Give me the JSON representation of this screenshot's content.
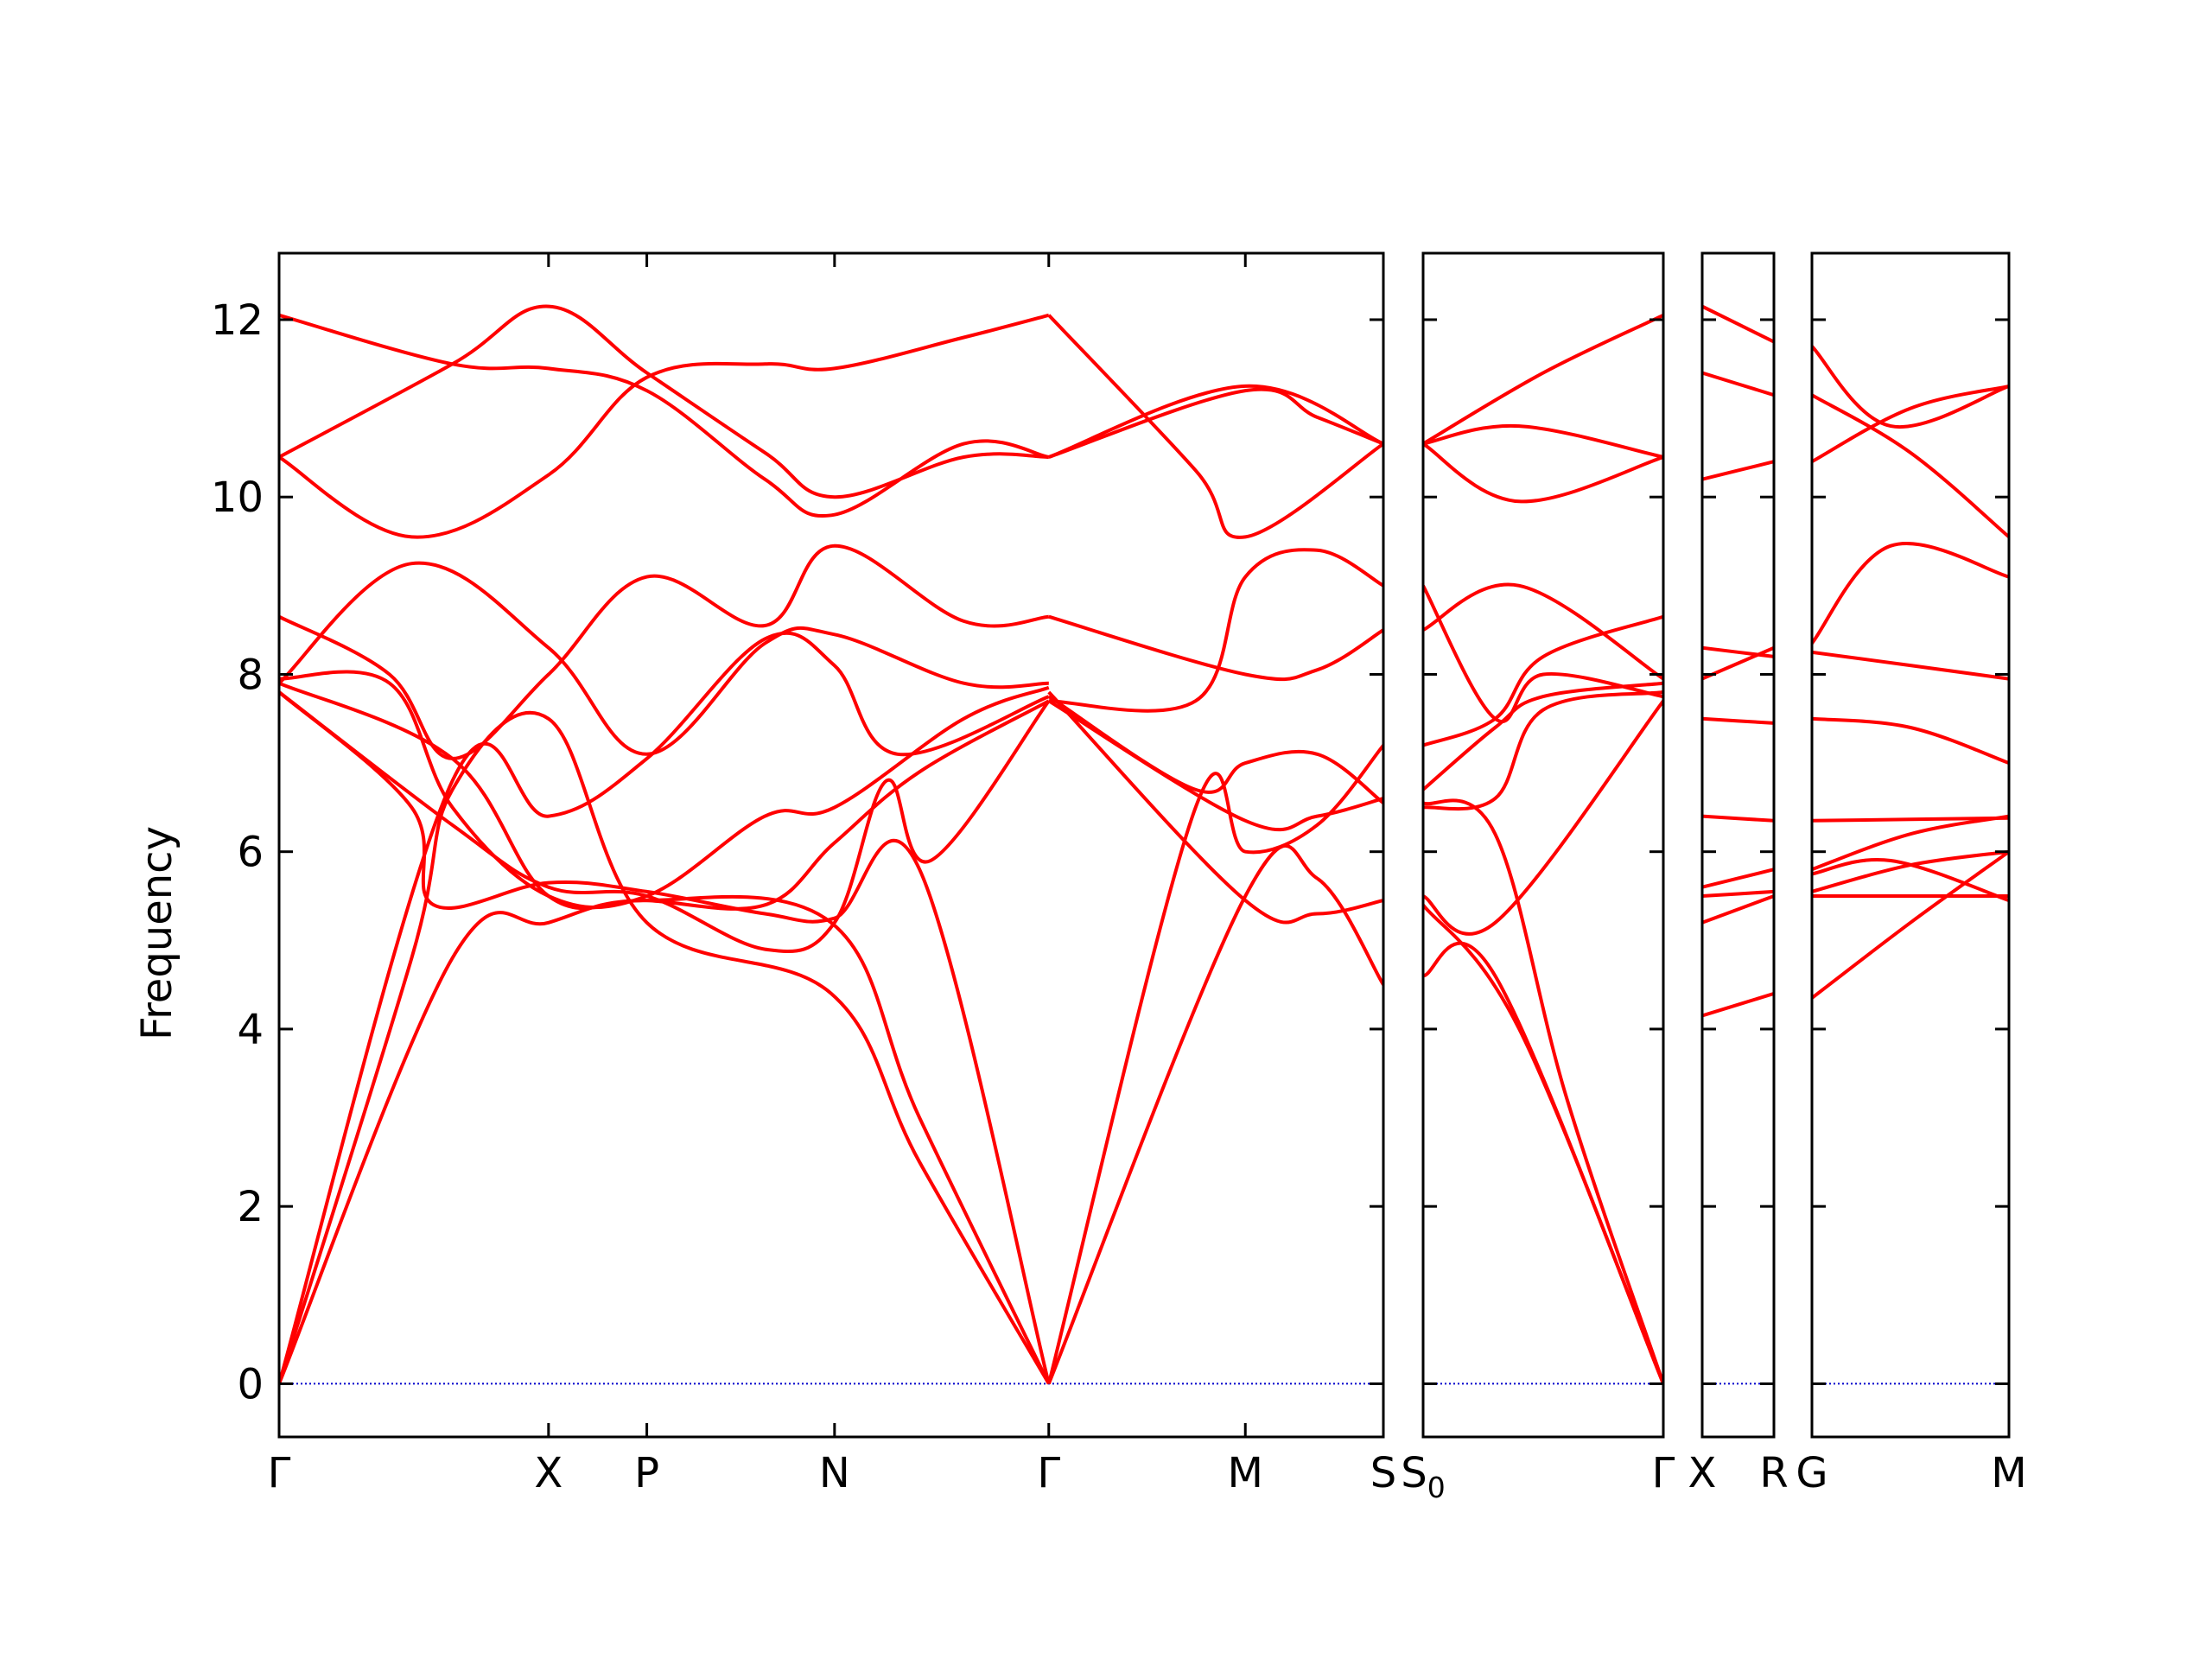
{
  "chart_data": {
    "type": "line",
    "title": "",
    "xlabel": "",
    "ylabel": "Frequency",
    "ylim": [
      -0.6,
      12.75
    ],
    "yticks": [
      0,
      2,
      4,
      6,
      8,
      10,
      12
    ],
    "grid": false,
    "line_color": "#ff0000",
    "zero_line_color": "#0000cc",
    "panels": [
      {
        "labels": [
          "Γ",
          "X",
          "P",
          "N",
          "Γ",
          "M",
          "S"
        ],
        "label_subs": [
          "",
          "",
          "",
          "",
          "",
          "",
          ""
        ],
        "label_x": [
          0,
          0.244,
          0.333,
          0.503,
          0.697,
          0.875,
          1.0
        ],
        "bands": [
          [
            [
              0,
              0
            ],
            [
              0.157,
              4.8
            ],
            [
              0.244,
              5.2
            ],
            [
              0.333,
              5.45
            ],
            [
              0.5,
              5.2
            ],
            [
              0.58,
              3.0
            ],
            [
              0.697,
              0
            ]
          ],
          [
            [
              0,
              0
            ],
            [
              0.12,
              4.8
            ],
            [
              0.157,
              6.7
            ],
            [
              0.244,
              7.5
            ],
            [
              0.333,
              5.2
            ],
            [
              0.5,
              4.4
            ],
            [
              0.58,
              2.5
            ],
            [
              0.697,
              0
            ]
          ],
          [
            [
              0,
              0
            ],
            [
              0.157,
              6.8
            ],
            [
              0.244,
              6.4
            ],
            [
              0.333,
              7.05
            ],
            [
              0.44,
              8.4
            ],
            [
              0.503,
              8.1
            ],
            [
              0.56,
              7.1
            ],
            [
              0.697,
              7.75
            ]
          ],
          [
            [
              0,
              7.8
            ],
            [
              0.12,
              6.5
            ],
            [
              0.14,
              5.4
            ],
            [
              0.244,
              5.65
            ],
            [
              0.333,
              5.55
            ],
            [
              0.44,
              5.3
            ],
            [
              0.503,
              5.25
            ],
            [
              0.58,
              5.8
            ],
            [
              0.697,
              0
            ]
          ],
          [
            [
              0,
              7.8
            ],
            [
              0.157,
              6.3
            ],
            [
              0.244,
              5.6
            ],
            [
              0.333,
              5.5
            ],
            [
              0.44,
              4.9
            ],
            [
              0.503,
              5.2
            ],
            [
              0.55,
              6.8
            ],
            [
              0.59,
              5.9
            ],
            [
              0.697,
              7.7
            ]
          ],
          [
            [
              0,
              7.9
            ],
            [
              0.157,
              7.05
            ],
            [
              0.244,
              5.5
            ],
            [
              0.333,
              5.45
            ],
            [
              0.44,
              5.4
            ],
            [
              0.503,
              6.1
            ],
            [
              0.58,
              6.9
            ],
            [
              0.697,
              7.7
            ]
          ],
          [
            [
              0,
              7.95
            ],
            [
              0.1,
              7.9
            ],
            [
              0.157,
              6.5
            ],
            [
              0.244,
              5.5
            ],
            [
              0.333,
              5.5
            ],
            [
              0.44,
              6.4
            ],
            [
              0.503,
              6.5
            ],
            [
              0.62,
              7.5
            ],
            [
              0.697,
              7.85
            ]
          ],
          [
            [
              0,
              8.65
            ],
            [
              0.1,
              8.0
            ],
            [
              0.157,
              7.05
            ],
            [
              0.244,
              8.0
            ],
            [
              0.333,
              9.1
            ],
            [
              0.44,
              8.55
            ],
            [
              0.503,
              9.45
            ],
            [
              0.62,
              8.6
            ],
            [
              0.697,
              8.65
            ]
          ],
          [
            [
              0,
              7.9
            ],
            [
              0.12,
              9.25
            ],
            [
              0.244,
              8.3
            ],
            [
              0.333,
              7.1
            ],
            [
              0.44,
              8.35
            ],
            [
              0.503,
              8.45
            ],
            [
              0.62,
              7.9
            ],
            [
              0.697,
              7.9
            ]
          ],
          [
            [
              0,
              10.45
            ],
            [
              0.157,
              11.5
            ],
            [
              0.244,
              12.15
            ],
            [
              0.333,
              11.4
            ],
            [
              0.44,
              10.5
            ],
            [
              0.503,
              10.0
            ],
            [
              0.62,
              10.45
            ],
            [
              0.697,
              10.45
            ]
          ],
          [
            [
              0,
              10.45
            ],
            [
              0.12,
              9.55
            ],
            [
              0.244,
              10.25
            ],
            [
              0.333,
              11.35
            ],
            [
              0.44,
              11.5
            ],
            [
              0.503,
              11.45
            ],
            [
              0.62,
              11.8
            ],
            [
              0.697,
              12.05
            ]
          ],
          [
            [
              0,
              12.05
            ],
            [
              0.157,
              11.5
            ],
            [
              0.244,
              11.45
            ],
            [
              0.333,
              11.2
            ],
            [
              0.44,
              10.2
            ],
            [
              0.503,
              9.8
            ],
            [
              0.62,
              10.6
            ],
            [
              0.697,
              10.45
            ]
          ],
          [
            [
              0.697,
              0
            ],
            [
              0.875,
              5.5
            ],
            [
              0.94,
              5.7
            ],
            [
              1.0,
              4.5
            ]
          ],
          [
            [
              0.697,
              0
            ],
            [
              0.83,
              6.5
            ],
            [
              0.875,
              6.0
            ],
            [
              0.94,
              6.3
            ],
            [
              1.0,
              7.2
            ]
          ],
          [
            [
              0.697,
              7.7
            ],
            [
              0.875,
              6.35
            ],
            [
              0.94,
              6.4
            ],
            [
              1.0,
              6.6
            ]
          ],
          [
            [
              0.697,
              7.75
            ],
            [
              0.83,
              6.7
            ],
            [
              0.875,
              7.0
            ],
            [
              0.94,
              7.1
            ],
            [
              1.0,
              6.55
            ]
          ],
          [
            [
              0.697,
              7.7
            ],
            [
              0.83,
              7.7
            ],
            [
              0.875,
              9.1
            ],
            [
              0.94,
              9.4
            ],
            [
              1.0,
              9.0
            ]
          ],
          [
            [
              0.697,
              8.65
            ],
            [
              0.875,
              8.0
            ],
            [
              0.94,
              8.05
            ],
            [
              1.0,
              8.5
            ]
          ],
          [
            [
              0.697,
              10.45
            ],
            [
              0.875,
              11.25
            ],
            [
              1.0,
              10.6
            ]
          ],
          [
            [
              0.697,
              12.05
            ],
            [
              0.83,
              10.3
            ],
            [
              0.875,
              9.55
            ],
            [
              1.0,
              10.6
            ]
          ],
          [
            [
              0.697,
              10.45
            ],
            [
              0.875,
              11.2
            ],
            [
              0.94,
              10.9
            ],
            [
              1.0,
              10.6
            ]
          ],
          [
            [
              0.697,
              7.8
            ],
            [
              0.875,
              5.45
            ],
            [
              0.94,
              5.3
            ],
            [
              1.0,
              5.45
            ]
          ]
        ]
      },
      {
        "labels": [
          "S",
          "Γ"
        ],
        "label_subs": [
          "0",
          ""
        ],
        "label_x": [
          0,
          1.0
        ],
        "bands": [
          [
            [
              0,
              5.4
            ],
            [
              0.4,
              4.0
            ],
            [
              1.0,
              0
            ]
          ],
          [
            [
              0,
              4.6
            ],
            [
              0.3,
              4.6
            ],
            [
              1.0,
              0
            ]
          ],
          [
            [
              0,
              6.55
            ],
            [
              0.3,
              6.2
            ],
            [
              0.6,
              3.2
            ],
            [
              1.0,
              0
            ]
          ],
          [
            [
              0,
              5.5
            ],
            [
              0.3,
              5.2
            ],
            [
              1.0,
              7.7
            ]
          ],
          [
            [
              0,
              6.5
            ],
            [
              0.3,
              6.6
            ],
            [
              0.5,
              7.6
            ],
            [
              1.0,
              7.8
            ]
          ],
          [
            [
              0,
              6.7
            ],
            [
              0.3,
              7.4
            ],
            [
              0.5,
              7.75
            ],
            [
              1.0,
              7.9
            ]
          ],
          [
            [
              0,
              7.2
            ],
            [
              0.3,
              7.5
            ],
            [
              0.5,
              8.2
            ],
            [
              1.0,
              8.65
            ]
          ],
          [
            [
              0,
              9.0
            ],
            [
              0.3,
              7.5
            ],
            [
              0.5,
              8.0
            ],
            [
              1.0,
              7.75
            ]
          ],
          [
            [
              0,
              8.5
            ],
            [
              0.4,
              9.0
            ],
            [
              1.0,
              7.95
            ]
          ],
          [
            [
              0,
              10.6
            ],
            [
              0.4,
              9.95
            ],
            [
              1.0,
              10.45
            ]
          ],
          [
            [
              0,
              10.6
            ],
            [
              0.4,
              10.8
            ],
            [
              1.0,
              10.45
            ]
          ],
          [
            [
              0,
              10.6
            ],
            [
              0.5,
              11.4
            ],
            [
              1.0,
              12.05
            ]
          ]
        ]
      },
      {
        "labels": [
          "X",
          "R"
        ],
        "label_subs": [
          "",
          ""
        ],
        "label_x": [
          0,
          1.0
        ],
        "bands": [
          [
            [
              0,
              4.15
            ],
            [
              1.0,
              4.4
            ]
          ],
          [
            [
              0,
              5.2
            ],
            [
              1.0,
              5.5
            ]
          ],
          [
            [
              0,
              5.5
            ],
            [
              1.0,
              5.55
            ]
          ],
          [
            [
              0,
              5.6
            ],
            [
              1.0,
              5.8
            ]
          ],
          [
            [
              0,
              6.4
            ],
            [
              1.0,
              6.35
            ]
          ],
          [
            [
              0,
              7.5
            ],
            [
              1.0,
              7.45
            ]
          ],
          [
            [
              0,
              7.95
            ],
            [
              1.0,
              8.3
            ]
          ],
          [
            [
              0,
              8.3
            ],
            [
              1.0,
              8.2
            ]
          ],
          [
            [
              0,
              10.2
            ],
            [
              1.0,
              10.4
            ]
          ],
          [
            [
              0,
              11.4
            ],
            [
              1.0,
              11.15
            ]
          ],
          [
            [
              0,
              12.15
            ],
            [
              1.0,
              11.75
            ]
          ]
        ]
      },
      {
        "labels": [
          "G",
          "M"
        ],
        "label_subs": [
          "",
          ""
        ],
        "label_x": [
          0,
          1.0
        ],
        "bands": [
          [
            [
              0,
              4.35
            ],
            [
              0.5,
              5.2
            ],
            [
              1.0,
              6.0
            ]
          ],
          [
            [
              0,
              5.5
            ],
            [
              1.0,
              5.5
            ]
          ],
          [
            [
              0,
              5.55
            ],
            [
              0.5,
              5.85
            ],
            [
              1.0,
              6.0
            ]
          ],
          [
            [
              0,
              5.75
            ],
            [
              0.4,
              5.9
            ],
            [
              1.0,
              5.45
            ]
          ],
          [
            [
              0,
              5.8
            ],
            [
              0.5,
              6.2
            ],
            [
              1.0,
              6.4
            ]
          ],
          [
            [
              0,
              6.35
            ],
            [
              1.0,
              6.38
            ]
          ],
          [
            [
              0,
              7.5
            ],
            [
              0.5,
              7.4
            ],
            [
              1.0,
              7.0
            ]
          ],
          [
            [
              0,
              8.25
            ],
            [
              1.0,
              7.95
            ]
          ],
          [
            [
              0,
              8.35
            ],
            [
              0.4,
              9.45
            ],
            [
              1.0,
              9.1
            ]
          ],
          [
            [
              0,
              10.4
            ],
            [
              0.5,
              11.0
            ],
            [
              1.0,
              11.25
            ]
          ],
          [
            [
              0,
              11.15
            ],
            [
              0.5,
              10.5
            ],
            [
              1.0,
              9.55
            ]
          ],
          [
            [
              0,
              11.7
            ],
            [
              0.4,
              10.8
            ],
            [
              1.0,
              11.25
            ]
          ]
        ]
      }
    ]
  }
}
